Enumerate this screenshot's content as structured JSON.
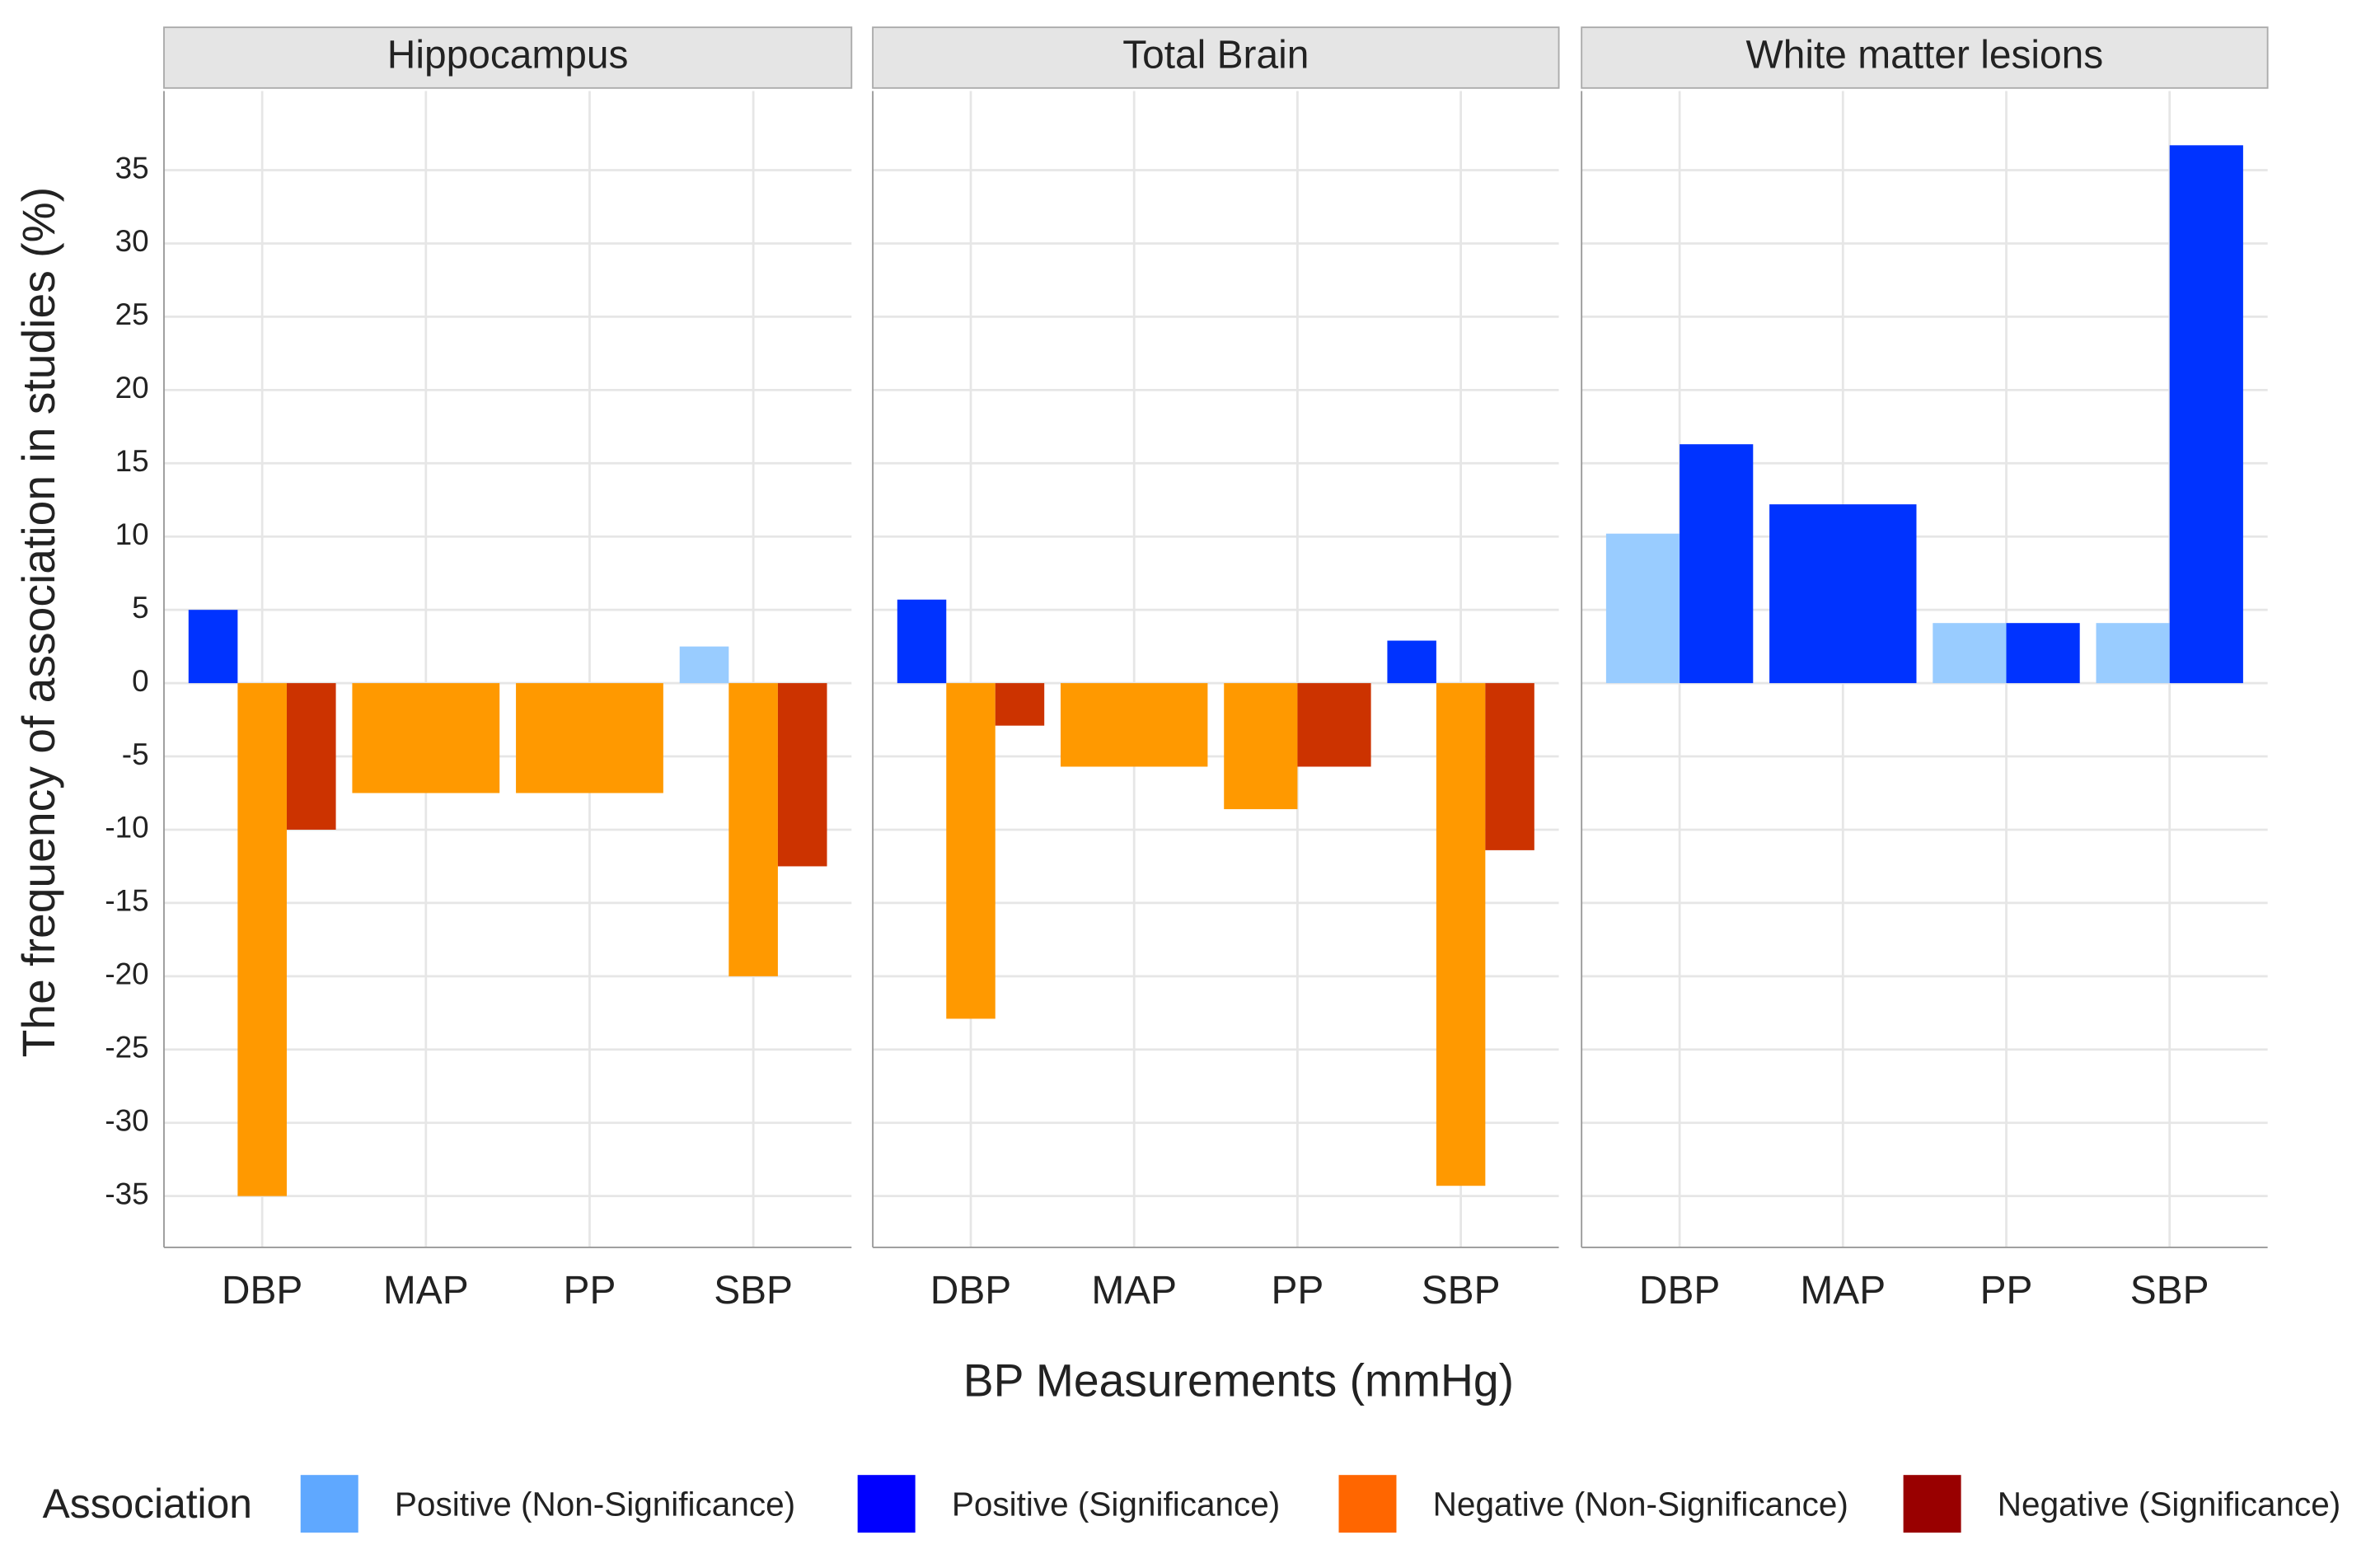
{
  "chart_data": {
    "type": "bar",
    "y_label": "The frequency of association in studies (%)",
    "x_label": "BP Measurements (mmHg)",
    "legend_title": "Association",
    "categories": [
      "DBP",
      "MAP",
      "PP",
      "SBP"
    ],
    "ylim": [
      -38.5,
      40.4
    ],
    "yticks": [
      -35,
      -30,
      -25,
      -20,
      -15,
      -10,
      -5,
      0,
      5,
      10,
      15,
      20,
      25,
      30,
      35
    ],
    "grid": true,
    "series": [
      {
        "name": "Positive (Non-Significance)",
        "color": "#99ccff",
        "legend_color": "#5fa8ff"
      },
      {
        "name": "Positive (Significance)",
        "color": "#0033ff",
        "legend_color": "#0000ff"
      },
      {
        "name": "Negative (Non-Significance)",
        "color": "#ff9900",
        "legend_color": "#ff6600"
      },
      {
        "name": "Negative (Significance)",
        "color": "#cc3300",
        "legend_color": "#990000"
      }
    ],
    "panels": [
      {
        "title": "Hippocampus",
        "values": [
          [
            null,
            null,
            null,
            2.5
          ],
          [
            5,
            null,
            null,
            null
          ],
          [
            -35,
            -7.5,
            -7.5,
            -20
          ],
          [
            -10,
            null,
            null,
            -12.5
          ]
        ]
      },
      {
        "title": "Total Brain",
        "values": [
          [
            null,
            null,
            null,
            null
          ],
          [
            5.7,
            null,
            null,
            2.9
          ],
          [
            -22.9,
            -5.7,
            -8.6,
            -34.3
          ],
          [
            -2.9,
            null,
            -5.7,
            -11.4
          ]
        ]
      },
      {
        "title": "White matter lesions",
        "values": [
          [
            10.2,
            null,
            4.1,
            4.1
          ],
          [
            16.3,
            12.2,
            4.1,
            36.7
          ],
          [
            null,
            null,
            null,
            null
          ],
          [
            null,
            null,
            null,
            null
          ]
        ]
      }
    ]
  }
}
